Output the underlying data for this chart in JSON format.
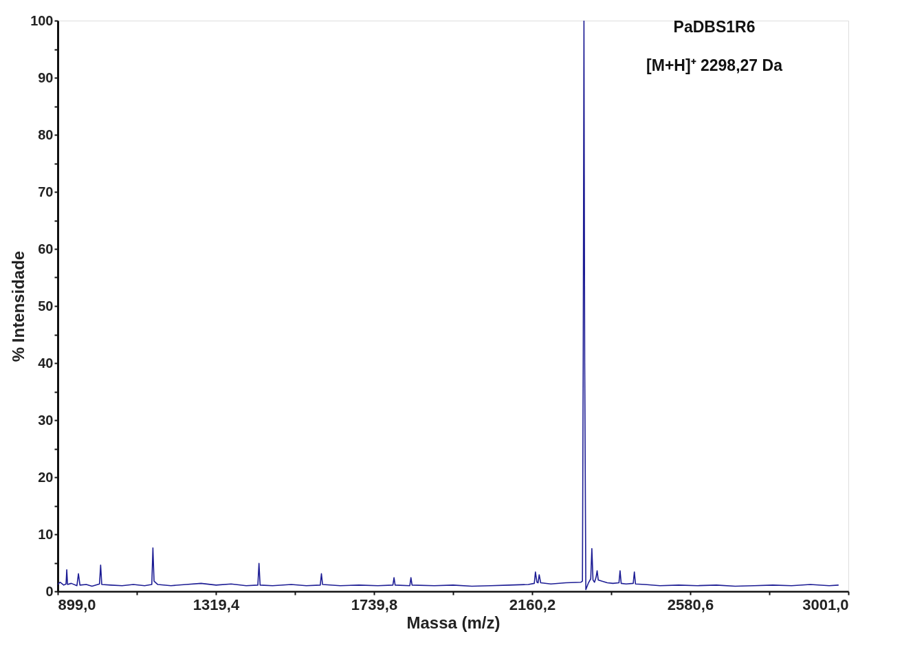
{
  "chart_data": {
    "type": "line",
    "xlabel": "Massa (m/z)",
    "ylabel": "% Intensidade",
    "annotations": [
      "PaDBS1R6",
      "[M+H]⁺ 2298,27 Da"
    ],
    "x": [
      899,
      905,
      915,
      921,
      923,
      925,
      935,
      950,
      954,
      958,
      975,
      990,
      1010,
      1013,
      1016,
      1040,
      1070,
      1100,
      1130,
      1149,
      1152,
      1155,
      1165,
      1200,
      1240,
      1280,
      1320,
      1360,
      1400,
      1431,
      1434,
      1437,
      1470,
      1520,
      1560,
      1597,
      1600,
      1603,
      1650,
      1700,
      1750,
      1790,
      1793,
      1796,
      1835,
      1838,
      1841,
      1900,
      1950,
      2000,
      2050,
      2100,
      2150,
      2166,
      2169,
      2173,
      2176,
      2179,
      2183,
      2210,
      2250,
      2290,
      2294,
      2296,
      2298,
      2300,
      2303,
      2310,
      2316,
      2319,
      2322,
      2326,
      2330,
      2333,
      2336,
      2345,
      2360,
      2375,
      2391,
      2394,
      2397,
      2410,
      2429,
      2432,
      2435,
      2460,
      2500,
      2550,
      2600,
      2650,
      2700,
      2750,
      2800,
      2850,
      2900,
      2950,
      2975
    ],
    "series": [
      {
        "color": "#1c1c94",
        "values": [
          1.2,
          1.6,
          1.1,
          1.3,
          3.8,
          1.2,
          1.4,
          1.0,
          3.1,
          1.1,
          1.2,
          0.9,
          1.3,
          4.6,
          1.2,
          1.1,
          1.0,
          1.2,
          1.0,
          1.2,
          7.6,
          1.8,
          1.2,
          1.0,
          1.2,
          1.4,
          1.1,
          1.3,
          1.0,
          1.1,
          4.9,
          1.1,
          1.0,
          1.2,
          1.0,
          1.1,
          3.1,
          1.2,
          1.0,
          1.1,
          1.0,
          1.1,
          2.4,
          1.1,
          1.0,
          2.4,
          1.1,
          1.0,
          1.1,
          0.9,
          1.0,
          1.1,
          1.2,
          1.4,
          3.4,
          1.6,
          1.5,
          2.9,
          1.5,
          1.3,
          1.5,
          1.6,
          1.8,
          40,
          100,
          40,
          0.3,
          1.5,
          2.2,
          7.5,
          2.0,
          1.6,
          2.4,
          3.6,
          2.0,
          1.8,
          1.5,
          1.4,
          1.5,
          3.6,
          1.4,
          1.3,
          1.4,
          3.4,
          1.3,
          1.2,
          1.0,
          1.1,
          1.0,
          1.1,
          0.9,
          1.0,
          1.1,
          1.0,
          1.2,
          1.0,
          1.1
        ]
      }
    ],
    "xlim": [
      899,
      3001
    ],
    "ylim": [
      0,
      100
    ],
    "xticks": [
      {
        "value": 899,
        "label": "899,0"
      },
      {
        "value": 1109.2,
        "label": null
      },
      {
        "value": 1319.4,
        "label": "1319,4"
      },
      {
        "value": 1529.6,
        "label": null
      },
      {
        "value": 1739.8,
        "label": "1739,8"
      },
      {
        "value": 1950,
        "label": null
      },
      {
        "value": 2160.2,
        "label": "2160,2"
      },
      {
        "value": 2370.4,
        "label": null
      },
      {
        "value": 2580.6,
        "label": "2580,6"
      },
      {
        "value": 2790.8,
        "label": null
      },
      {
        "value": 3001,
        "label": "3001,0"
      }
    ],
    "yticks": [
      0,
      {
        "value": 5,
        "label": null
      },
      10,
      {
        "value": 15,
        "label": null
      },
      20,
      {
        "value": 25,
        "label": null
      },
      30,
      {
        "value": 35,
        "label": null
      },
      40,
      {
        "value": 45,
        "label": null
      },
      50,
      {
        "value": 55,
        "label": null
      },
      60,
      {
        "value": 65,
        "label": null
      },
      70,
      {
        "value": 75,
        "label": null
      },
      80,
      {
        "value": 85,
        "label": null
      },
      90,
      {
        "value": 95,
        "label": null
      },
      100
    ],
    "grid": false,
    "marker": "none",
    "line_style": "solid"
  }
}
